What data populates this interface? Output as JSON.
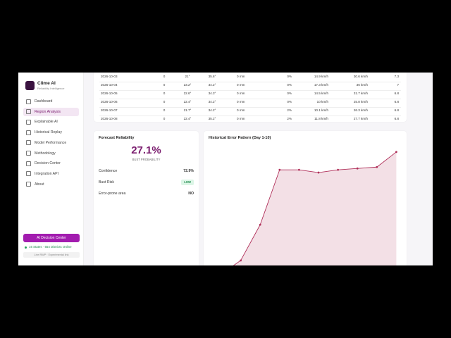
{
  "brand": {
    "name": "Clime AI",
    "tagline": "Reliability Intelligence"
  },
  "nav": [
    "Dashboard",
    "Region Analysis",
    "Explainable AI",
    "Historical Replay",
    "Model Performance",
    "Methodology",
    "Decision Center",
    "Integration API",
    "About"
  ],
  "active_nav": 1,
  "sidebar_footer": {
    "button": "AI Decision Center",
    "status": "16 States · 554 Districts Online",
    "note": "Live RWP · Experimental link"
  },
  "table": {
    "rows": [
      [
        "2026-10-03",
        "0",
        "21°",
        "35.6°",
        "0 mm",
        "0%",
        "14.9 km/h",
        "30.6 km/h",
        "7.3"
      ],
      [
        "2026-10-04",
        "0",
        "23.2°",
        "34.2°",
        "0 mm",
        "0%",
        "17.3 km/h",
        "36 km/h",
        "7"
      ],
      [
        "2026-10-05",
        "0",
        "22.6°",
        "34.3°",
        "0 mm",
        "0%",
        "14.5 km/h",
        "31.7 km/h",
        "6.8"
      ],
      [
        "2026-10-06",
        "0",
        "22.4°",
        "34.2°",
        "0 mm",
        "0%",
        "10 km/h",
        "25.8 km/h",
        "6.8"
      ],
      [
        "2026-10-07",
        "0",
        "21.7°",
        "34.2°",
        "0 mm",
        "2%",
        "10.1 km/h",
        "26.3 km/h",
        "6.8"
      ],
      [
        "2026-10-08",
        "0",
        "22.4°",
        "35.2°",
        "0 mm",
        "2%",
        "11.8 km/h",
        "27.7 km/h",
        "6.8"
      ]
    ]
  },
  "reliability": {
    "title": "Forecast Reliability",
    "value": "27.1%",
    "value_caption": "BUST PROBABILITY",
    "items": [
      {
        "label": "Confidence",
        "value": "72.9%"
      },
      {
        "label": "Bust Risk",
        "value": "LOW"
      },
      {
        "label": "Error-prone area",
        "value": "NO"
      }
    ]
  },
  "chart_data": {
    "type": "line",
    "title": "Historical Error Pattern (Day 1-10)",
    "values": [
      7,
      17,
      43,
      83,
      83,
      81,
      83,
      84,
      85,
      96
    ],
    "color": "#b0305a",
    "ylim": [
      0,
      100
    ]
  }
}
